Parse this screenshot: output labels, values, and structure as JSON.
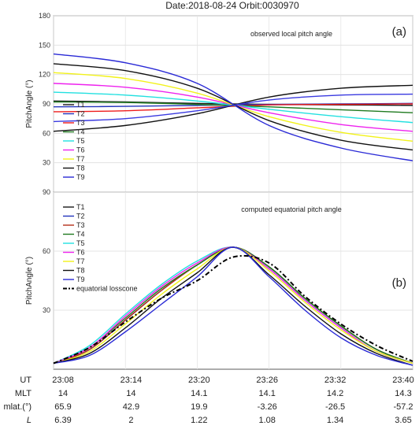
{
  "title": "Date:2018-08-24   Orbit:0030970",
  "chart_data": [
    {
      "type": "line",
      "panel_tag": "(a)",
      "annotation": "observed local pitch angle",
      "ylabel": "PitchAngle   (°)",
      "ylim": [
        0,
        180
      ],
      "yticks": [
        30,
        60,
        90,
        120,
        150,
        180
      ],
      "ytick_labels": [
        "30",
        "60",
        "90",
        "120",
        "150",
        "180"
      ],
      "xlim": [
        0,
        1
      ],
      "grid": true,
      "legend_position": "bottom-left",
      "series": [
        {
          "name": "T1",
          "color": "#1a1a1a",
          "x": [
            0,
            0.2,
            0.4,
            0.6,
            0.8,
            1
          ],
          "values": [
            93,
            92,
            90.5,
            89.5,
            89,
            88.5
          ]
        },
        {
          "name": "T2",
          "color": "#2233bb",
          "x": [
            0,
            0.2,
            0.4,
            0.6,
            0.8,
            1
          ],
          "values": [
            87,
            87.5,
            88.5,
            89.5,
            90,
            90.5
          ]
        },
        {
          "name": "T3",
          "color": "#ee1c1c",
          "x": [
            0,
            0.2,
            0.4,
            0.6,
            0.8,
            1
          ],
          "values": [
            82,
            83,
            86,
            89,
            89.5,
            90
          ]
        },
        {
          "name": "T4",
          "color": "#1f7a1f",
          "x": [
            0,
            0.2,
            0.4,
            0.6,
            0.8,
            1
          ],
          "values": [
            92,
            91.5,
            89.5,
            87,
            84,
            81
          ]
        },
        {
          "name": "T5",
          "color": "#22e0e0",
          "x": [
            0,
            0.2,
            0.4,
            0.6,
            0.8,
            1
          ],
          "values": [
            102,
            99,
            93,
            84.5,
            77,
            71
          ]
        },
        {
          "name": "T6",
          "color": "#ee22ee",
          "x": [
            0,
            0.2,
            0.4,
            0.6,
            0.8,
            1
          ],
          "values": [
            111,
            107,
            97,
            81,
            69,
            62
          ]
        },
        {
          "name": "T7",
          "color": "#f2f21a",
          "x": [
            0,
            0.2,
            0.4,
            0.6,
            0.8,
            1
          ],
          "values": [
            122,
            116,
            101,
            77,
            61,
            52
          ]
        },
        {
          "name": "T8",
          "color": "#111111",
          "x": [
            0,
            0.2,
            0.4,
            0.6,
            0.8,
            1
          ],
          "values": [
            131,
            124,
            106,
            73,
            53,
            43
          ]
        },
        {
          "name": "T9",
          "color": "#2a2ad6",
          "x": [
            0,
            0.2,
            0.4,
            0.6,
            0.8,
            1
          ],
          "values": [
            141,
            132,
            111,
            68,
            45,
            32
          ]
        },
        {
          "name": "",
          "color": "#111111",
          "x": [
            0,
            0.2,
            0.4,
            0.6,
            0.8,
            1
          ],
          "values": [
            62,
            68,
            80,
            97,
            106,
            109
          ]
        },
        {
          "name": "",
          "color": "#3a3ae0",
          "x": [
            0,
            0.2,
            0.4,
            0.6,
            0.8,
            1
          ],
          "values": [
            72,
            75,
            83,
            94,
            99,
            100
          ]
        }
      ]
    },
    {
      "type": "line",
      "panel_tag": "(b)",
      "annotation": "computed equatorial pitch angle",
      "ylabel": "PitchAngle   (°)",
      "ylim": [
        0,
        90
      ],
      "yticks": [
        30,
        60,
        90
      ],
      "ytick_labels": [
        "30",
        "60",
        "90"
      ],
      "xlim": [
        0,
        1
      ],
      "grid": true,
      "legend_position": "top-left",
      "series": [
        {
          "name": "T1",
          "color": "#1a1a1a",
          "x": [
            0,
            0.1,
            0.2,
            0.3,
            0.4,
            0.5,
            0.6,
            0.7,
            0.8,
            0.9,
            1
          ],
          "values": [
            3,
            10,
            25,
            40,
            53,
            62,
            52,
            36,
            22,
            10,
            3
          ]
        },
        {
          "name": "T2",
          "color": "#2233bb",
          "x": [
            0,
            0.1,
            0.2,
            0.3,
            0.4,
            0.5,
            0.6,
            0.7,
            0.8,
            0.9,
            1
          ],
          "values": [
            3,
            10,
            25,
            40,
            53,
            62,
            52,
            36,
            22,
            10,
            3
          ]
        },
        {
          "name": "T3",
          "color": "#b5301a",
          "x": [
            0,
            0.1,
            0.2,
            0.3,
            0.4,
            0.5,
            0.6,
            0.7,
            0.8,
            0.9,
            1
          ],
          "values": [
            3,
            10,
            25,
            40,
            53,
            62,
            52,
            36,
            22,
            10,
            3
          ]
        },
        {
          "name": "T4",
          "color": "#1f7a1f",
          "x": [
            0,
            0.1,
            0.2,
            0.3,
            0.4,
            0.5,
            0.6,
            0.7,
            0.8,
            0.9,
            1
          ],
          "values": [
            3,
            11,
            26,
            41,
            53,
            62,
            52,
            36,
            22,
            10,
            3
          ]
        },
        {
          "name": "T5",
          "color": "#22e0e0",
          "x": [
            0,
            0.1,
            0.2,
            0.3,
            0.4,
            0.5,
            0.6,
            0.7,
            0.8,
            0.9,
            1
          ],
          "values": [
            3,
            12,
            28,
            43,
            55,
            62,
            51,
            35,
            21,
            9,
            3
          ]
        },
        {
          "name": "T6",
          "color": "#ee22ee",
          "x": [
            0,
            0.1,
            0.2,
            0.3,
            0.4,
            0.5,
            0.6,
            0.7,
            0.8,
            0.9,
            1
          ],
          "values": [
            3,
            11,
            27,
            42,
            54,
            62,
            51,
            35,
            21,
            9,
            3
          ]
        },
        {
          "name": "T7",
          "color": "#f2f21a",
          "x": [
            0,
            0.1,
            0.2,
            0.3,
            0.4,
            0.5,
            0.6,
            0.7,
            0.8,
            0.9,
            1
          ],
          "values": [
            3,
            9,
            23,
            38,
            51,
            62,
            50,
            34,
            20,
            9,
            3
          ]
        },
        {
          "name": "T8",
          "color": "#111111",
          "x": [
            0,
            0.1,
            0.2,
            0.3,
            0.4,
            0.5,
            0.6,
            0.7,
            0.8,
            0.9,
            1
          ],
          "values": [
            3,
            8,
            21,
            36,
            49,
            62,
            48,
            32,
            18,
            8,
            2
          ]
        },
        {
          "name": "T9",
          "color": "#2a2ad6",
          "x": [
            0,
            0.1,
            0.2,
            0.3,
            0.4,
            0.5,
            0.6,
            0.7,
            0.8,
            0.9,
            1
          ],
          "values": [
            3,
            7,
            19,
            33,
            47,
            62,
            47,
            30,
            16,
            7,
            2
          ]
        },
        {
          "name": "equatorial losscone",
          "color": "#000000",
          "dashed": true,
          "x": [
            0,
            0.1,
            0.2,
            0.3,
            0.4,
            0.5,
            0.6,
            0.7,
            0.8,
            0.9,
            1
          ],
          "values": [
            3,
            11,
            24,
            36,
            45,
            57,
            54,
            37,
            23,
            12,
            4
          ]
        }
      ]
    }
  ],
  "xaxis_table": {
    "rows": [
      {
        "label": "UT",
        "italic": false,
        "values": [
          "23:08",
          "23:14",
          "23:20",
          "23:26",
          "23:32",
          "23:40"
        ]
      },
      {
        "label": "MLT",
        "italic": false,
        "values": [
          "14",
          "14",
          "14.1",
          "14.1",
          "14.2",
          "14.3"
        ]
      },
      {
        "label": "mlat.(°)",
        "italic": false,
        "values": [
          "65.9",
          "42.9",
          "19.9",
          "-3.26",
          "-26.5",
          "-57.2"
        ]
      },
      {
        "label": "L",
        "italic": true,
        "values": [
          "6.39",
          "2",
          "1.22",
          "1.08",
          "1.34",
          "3.65"
        ]
      }
    ]
  }
}
